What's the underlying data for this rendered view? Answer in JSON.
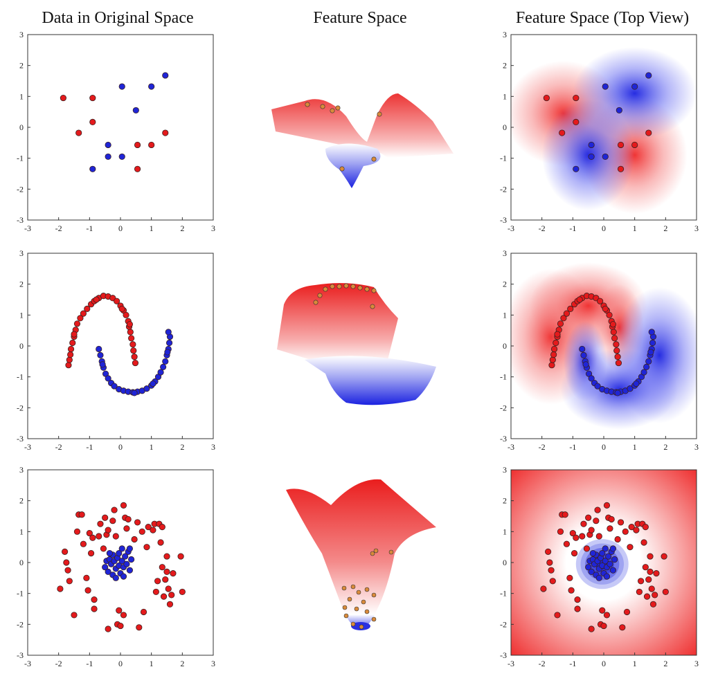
{
  "column_titles": [
    "Data in Original Space",
    "Feature Space",
    "Feature Space (Top View)"
  ],
  "colors": {
    "class_a": "#e41a1c",
    "class_b": "#1f25d6",
    "axis": "#333333",
    "marker_edge": "#3a2020"
  },
  "chart_data": [
    {
      "type": "scatter",
      "dataset": "xor",
      "title": "",
      "xlabel": "",
      "ylabel": "",
      "xlim": [
        -3,
        3
      ],
      "ylim": [
        -3,
        3
      ],
      "xticks": [
        -3,
        -2,
        -1,
        0,
        1,
        2,
        3
      ],
      "yticks": [
        -3,
        -2,
        -1,
        0,
        1,
        2,
        3
      ],
      "series": [
        {
          "name": "red",
          "points": [
            [
              -1.85,
              0.95
            ],
            [
              -0.9,
              0.95
            ],
            [
              -0.9,
              0.17
            ],
            [
              -1.35,
              -0.18
            ],
            [
              0.55,
              -0.57
            ],
            [
              1.0,
              -0.57
            ],
            [
              1.45,
              -0.18
            ],
            [
              0.55,
              -1.35
            ]
          ]
        },
        {
          "name": "blue",
          "points": [
            [
              0.05,
              1.32
            ],
            [
              1.0,
              1.32
            ],
            [
              1.45,
              1.68
            ],
            [
              0.5,
              0.55
            ],
            [
              -0.4,
              -0.57
            ],
            [
              0.05,
              -0.95
            ],
            [
              -0.4,
              -0.95
            ],
            [
              -0.9,
              -1.35
            ]
          ]
        }
      ]
    },
    {
      "type": "scatter",
      "dataset": "moons",
      "title": "",
      "xlabel": "",
      "ylabel": "",
      "xlim": [
        -3,
        3
      ],
      "ylim": [
        -3,
        3
      ],
      "xticks": [
        -3,
        -2,
        -1,
        0,
        1,
        2,
        3
      ],
      "yticks": [
        -3,
        -2,
        -1,
        0,
        1,
        2,
        3
      ],
      "series": [
        {
          "name": "red",
          "points": [
            [
              -1.68,
              -0.62
            ],
            [
              -1.65,
              -0.45
            ],
            [
              -1.62,
              -0.28
            ],
            [
              -1.6,
              -0.1
            ],
            [
              -1.55,
              0.1
            ],
            [
              -1.5,
              0.3
            ],
            [
              -1.45,
              0.52
            ],
            [
              -1.4,
              0.72
            ],
            [
              -1.3,
              0.9
            ],
            [
              -1.2,
              1.05
            ],
            [
              -1.08,
              1.2
            ],
            [
              -0.95,
              1.35
            ],
            [
              -0.85,
              1.45
            ],
            [
              -0.7,
              1.55
            ],
            [
              -0.55,
              1.62
            ],
            [
              -0.4,
              1.6
            ],
            [
              -0.25,
              1.55
            ],
            [
              -0.12,
              1.45
            ],
            [
              0.0,
              1.3
            ],
            [
              0.1,
              1.15
            ],
            [
              0.18,
              1.0
            ],
            [
              0.25,
              0.8
            ],
            [
              0.28,
              0.62
            ],
            [
              0.32,
              0.45
            ],
            [
              0.35,
              0.25
            ],
            [
              0.4,
              0.05
            ],
            [
              0.42,
              -0.15
            ],
            [
              0.45,
              -0.35
            ],
            [
              0.48,
              -0.55
            ],
            [
              -0.78,
              1.5
            ],
            [
              0.05,
              1.2
            ],
            [
              -1.5,
              0.38
            ],
            [
              0.3,
              0.7
            ]
          ]
        },
        {
          "name": "blue",
          "points": [
            [
              -0.7,
              -0.1
            ],
            [
              -0.65,
              -0.3
            ],
            [
              -0.6,
              -0.5
            ],
            [
              -0.55,
              -0.7
            ],
            [
              -0.48,
              -0.9
            ],
            [
              -0.4,
              -1.05
            ],
            [
              -0.3,
              -1.2
            ],
            [
              -0.2,
              -1.3
            ],
            [
              -0.05,
              -1.4
            ],
            [
              0.1,
              -1.45
            ],
            [
              0.25,
              -1.48
            ],
            [
              0.4,
              -1.5
            ],
            [
              0.55,
              -1.48
            ],
            [
              0.7,
              -1.45
            ],
            [
              0.85,
              -1.38
            ],
            [
              1.0,
              -1.28
            ],
            [
              1.12,
              -1.15
            ],
            [
              1.22,
              -1.0
            ],
            [
              1.3,
              -0.85
            ],
            [
              1.38,
              -0.68
            ],
            [
              1.45,
              -0.5
            ],
            [
              1.5,
              -0.3
            ],
            [
              1.55,
              -0.1
            ],
            [
              1.58,
              0.1
            ],
            [
              1.6,
              0.3
            ],
            [
              1.55,
              0.45
            ],
            [
              -0.58,
              -0.6
            ],
            [
              0.45,
              -1.52
            ],
            [
              1.05,
              -1.22
            ],
            [
              1.52,
              -0.2
            ]
          ]
        }
      ]
    },
    {
      "type": "scatter",
      "dataset": "circles",
      "title": "",
      "xlabel": "",
      "ylabel": "",
      "xlim": [
        -3,
        3
      ],
      "ylim": [
        -3,
        3
      ],
      "xticks": [
        -3,
        -2,
        -1,
        0,
        1,
        2,
        3
      ],
      "yticks": [
        -3,
        -2,
        -1,
        0,
        1,
        2,
        3
      ],
      "series": [
        {
          "name": "red",
          "points": [
            [
              -1.95,
              -0.85
            ],
            [
              -1.8,
              0.35
            ],
            [
              -1.75,
              0.0
            ],
            [
              -1.7,
              -0.25
            ],
            [
              -1.65,
              -0.6
            ],
            [
              -1.4,
              1.0
            ],
            [
              -1.35,
              1.55
            ],
            [
              -1.25,
              1.55
            ],
            [
              -1.2,
              0.6
            ],
            [
              -1.1,
              -0.5
            ],
            [
              -1.05,
              -0.9
            ],
            [
              -1.0,
              0.95
            ],
            [
              -0.95,
              0.3
            ],
            [
              -0.9,
              0.8
            ],
            [
              -0.85,
              -1.5
            ],
            [
              -0.85,
              -1.2
            ],
            [
              -0.7,
              0.85
            ],
            [
              -0.65,
              1.25
            ],
            [
              -0.55,
              0.45
            ],
            [
              -0.5,
              1.45
            ],
            [
              -0.45,
              0.9
            ],
            [
              -0.4,
              1.05
            ],
            [
              -0.4,
              -2.15
            ],
            [
              -0.25,
              1.35
            ],
            [
              -0.2,
              1.7
            ],
            [
              -0.15,
              0.85
            ],
            [
              -0.1,
              -2.0
            ],
            [
              -0.05,
              -1.55
            ],
            [
              0.0,
              -2.05
            ],
            [
              0.1,
              1.85
            ],
            [
              0.1,
              -1.7
            ],
            [
              0.15,
              1.45
            ],
            [
              0.2,
              1.1
            ],
            [
              0.25,
              1.4
            ],
            [
              0.45,
              0.75
            ],
            [
              0.6,
              -2.1
            ],
            [
              0.7,
              1.0
            ],
            [
              0.75,
              -1.6
            ],
            [
              0.85,
              0.5
            ],
            [
              0.9,
              1.15
            ],
            [
              1.05,
              1.05
            ],
            [
              1.1,
              1.25
            ],
            [
              1.15,
              -0.95
            ],
            [
              1.2,
              -0.6
            ],
            [
              1.25,
              1.25
            ],
            [
              1.3,
              0.65
            ],
            [
              1.35,
              1.15
            ],
            [
              1.35,
              -0.15
            ],
            [
              1.4,
              -1.1
            ],
            [
              1.45,
              -0.55
            ],
            [
              1.5,
              0.2
            ],
            [
              1.5,
              -0.3
            ],
            [
              1.55,
              -0.85
            ],
            [
              1.6,
              -1.35
            ],
            [
              1.65,
              -1.05
            ],
            [
              1.7,
              -0.35
            ],
            [
              1.95,
              0.2
            ],
            [
              2.0,
              -0.95
            ],
            [
              0.55,
              1.3
            ],
            [
              -1.5,
              -1.7
            ]
          ]
        },
        {
          "name": "blue",
          "points": [
            [
              -0.5,
              -0.15
            ],
            [
              -0.45,
              0.05
            ],
            [
              -0.4,
              -0.3
            ],
            [
              -0.35,
              0.1
            ],
            [
              -0.3,
              -0.05
            ],
            [
              -0.25,
              0.25
            ],
            [
              -0.25,
              -0.4
            ],
            [
              -0.2,
              0.05
            ],
            [
              -0.15,
              -0.2
            ],
            [
              -0.1,
              0.15
            ],
            [
              -0.05,
              -0.1
            ],
            [
              -0.05,
              0.3
            ],
            [
              0.0,
              -0.35
            ],
            [
              0.05,
              0.05
            ],
            [
              0.1,
              -0.15
            ],
            [
              0.15,
              0.2
            ],
            [
              0.2,
              -0.05
            ],
            [
              0.25,
              0.35
            ],
            [
              0.3,
              -0.25
            ],
            [
              0.35,
              0.1
            ],
            [
              -0.15,
              -0.5
            ],
            [
              0.1,
              -0.45
            ],
            [
              0.05,
              0.45
            ],
            [
              -0.35,
              0.3
            ],
            [
              0.3,
              0.45
            ]
          ]
        }
      ]
    }
  ]
}
